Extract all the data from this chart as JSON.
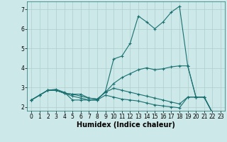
{
  "xlabel": "Humidex (Indice chaleur)",
  "background_color": "#cce8e8",
  "grid_color": "#b0cece",
  "line_color": "#1a7070",
  "xlim": [
    -0.5,
    23.5
  ],
  "ylim": [
    1.8,
    7.4
  ],
  "yticks": [
    2,
    3,
    4,
    5,
    6,
    7
  ],
  "xticks": [
    0,
    1,
    2,
    3,
    4,
    5,
    6,
    7,
    8,
    9,
    10,
    11,
    12,
    13,
    14,
    15,
    16,
    17,
    18,
    19,
    20,
    21,
    22,
    23
  ],
  "line1_x": [
    0,
    1,
    2,
    3,
    4,
    5,
    6,
    7,
    8,
    9,
    10,
    11,
    12,
    13,
    14,
    15,
    16,
    17,
    18,
    19,
    20,
    21,
    22,
    23
  ],
  "line1_y": [
    2.35,
    2.6,
    2.85,
    2.9,
    2.75,
    2.35,
    2.35,
    2.35,
    2.35,
    2.8,
    4.45,
    4.6,
    5.25,
    6.65,
    6.35,
    6.0,
    6.35,
    6.85,
    7.15,
    4.1,
    2.5,
    2.5,
    1.7,
    1.65
  ],
  "line2_x": [
    0,
    1,
    2,
    3,
    4,
    5,
    6,
    7,
    8,
    9,
    10,
    11,
    12,
    13,
    14,
    15,
    16,
    17,
    18,
    19,
    20,
    21,
    22,
    23
  ],
  "line2_y": [
    2.35,
    2.6,
    2.85,
    2.85,
    2.7,
    2.65,
    2.65,
    2.45,
    2.4,
    2.75,
    3.2,
    3.5,
    3.7,
    3.9,
    4.0,
    3.9,
    3.95,
    4.05,
    4.1,
    4.1,
    2.5,
    2.5,
    1.7,
    1.65
  ],
  "line3_x": [
    0,
    1,
    2,
    3,
    4,
    5,
    6,
    7,
    8,
    9,
    10,
    11,
    12,
    13,
    14,
    15,
    16,
    17,
    18,
    19,
    20,
    21,
    22,
    23
  ],
  "line3_y": [
    2.35,
    2.6,
    2.85,
    2.85,
    2.7,
    2.65,
    2.55,
    2.45,
    2.4,
    2.75,
    2.95,
    2.85,
    2.75,
    2.65,
    2.55,
    2.45,
    2.35,
    2.25,
    2.15,
    2.5,
    2.5,
    2.5,
    1.7,
    1.65
  ],
  "line4_x": [
    0,
    1,
    2,
    3,
    4,
    5,
    6,
    7,
    8,
    9,
    10,
    11,
    12,
    13,
    14,
    15,
    16,
    17,
    18,
    19,
    20,
    21,
    22,
    23
  ],
  "line4_y": [
    2.35,
    2.6,
    2.85,
    2.85,
    2.7,
    2.55,
    2.45,
    2.35,
    2.35,
    2.6,
    2.5,
    2.4,
    2.35,
    2.3,
    2.2,
    2.1,
    2.05,
    2.0,
    1.95,
    2.5,
    2.5,
    2.5,
    1.7,
    1.65
  ],
  "marker": "+",
  "markersize": 3,
  "linewidth": 0.8,
  "tick_fontsize": 5.5,
  "xlabel_fontsize": 7
}
